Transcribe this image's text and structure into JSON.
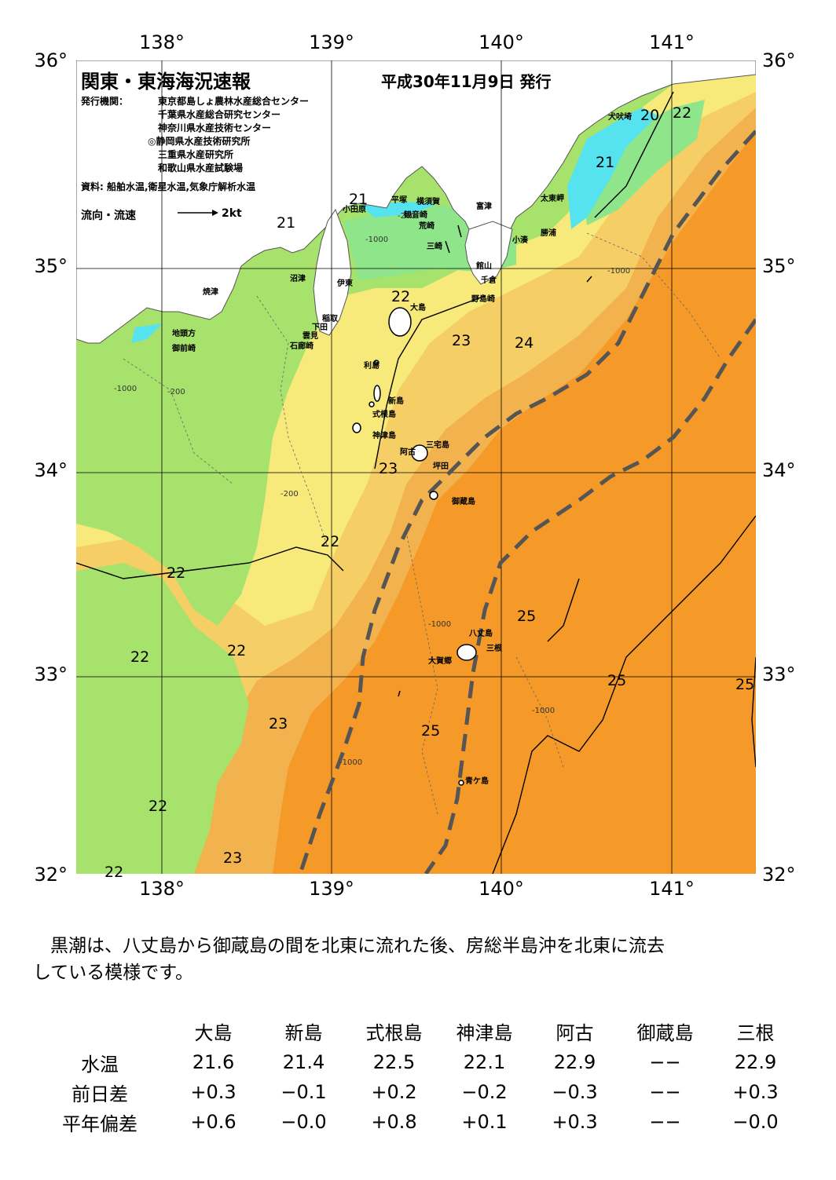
{
  "header": {
    "title": "関東・東海海況速報",
    "date": "平成30年11月9日 発行",
    "issuer_label": "発行機関：",
    "issuers": [
      "東京都島しょ農林水産総合センター",
      "千葉県水産総合研究センター",
      "神奈川県水産技術センター",
      "◎静岡県水産技術研究所",
      "三重県水産研究所",
      "和歌山県水産試験場"
    ],
    "source": "資料: 船舶水温,衛星水温,気象庁解析水温",
    "legend_label": "流向・流速",
    "legend_speed": "2kt"
  },
  "axes": {
    "lon_ticks": [
      "138°",
      "139°",
      "140°",
      "141°"
    ],
    "lat_ticks": [
      "36°",
      "35°",
      "34°",
      "33°",
      "32°"
    ]
  },
  "map": {
    "colors": {
      "below_20": "#55e3f0",
      "c20_21": "#8ee58a",
      "c21_22": "#a6e26c",
      "c22_23": "#f7ea7a",
      "c23_24": "#f6ce66",
      "c24_25": "#f2b24d",
      "above_25": "#f59a28",
      "land": "#ffffff",
      "kuroshio_axis": "#555555"
    },
    "place_names": [
      "犬吠埼",
      "太東岬",
      "勝浦",
      "小湊",
      "富津",
      "横須賀",
      "観音崎",
      "平塚",
      "小田原",
      "荒崎",
      "三崎",
      "館山",
      "千倉",
      "野島崎",
      "焼津",
      "沼津",
      "伊東",
      "稲取",
      "下田",
      "雲見",
      "石廊崎",
      "地頭方",
      "御前崎",
      "大島",
      "利島",
      "新島",
      "式根島",
      "神津島",
      "三宅島",
      "阿古",
      "坪田",
      "御蔵島",
      "八丈島",
      "三根",
      "大賀郷",
      "青ケ島"
    ],
    "isotherm_labels": [
      "20",
      "22",
      "21",
      "21",
      "21",
      "22",
      "23",
      "24",
      "23",
      "22",
      "22",
      "22",
      "22",
      "25",
      "25",
      "25",
      "25",
      "23",
      "22",
      "23",
      "22"
    ],
    "depth_labels": [
      "-200",
      "-1000"
    ]
  },
  "summary": {
    "line1": "黒潮は、八丈島から御蔵島の間を北東に流れた後、房総半島沖を北東に流去",
    "line2": "している模様です。"
  },
  "table": {
    "columns": [
      "大島",
      "新島",
      "式根島",
      "神津島",
      "阿古",
      "御蔵島",
      "三根"
    ],
    "rows": [
      {
        "label": "水温",
        "values": [
          "21.6",
          "21.4",
          "22.5",
          "22.1",
          "22.9",
          "−−",
          "22.9"
        ]
      },
      {
        "label": "前日差",
        "values": [
          "+0.3",
          "−0.1",
          "+0.2",
          "−0.2",
          "−0.3",
          "−−",
          "+0.3"
        ]
      },
      {
        "label": "平年偏差",
        "values": [
          "+0.6",
          "−0.0",
          "+0.8",
          "+0.1",
          "+0.3",
          "−−",
          "−0.0"
        ]
      }
    ]
  }
}
